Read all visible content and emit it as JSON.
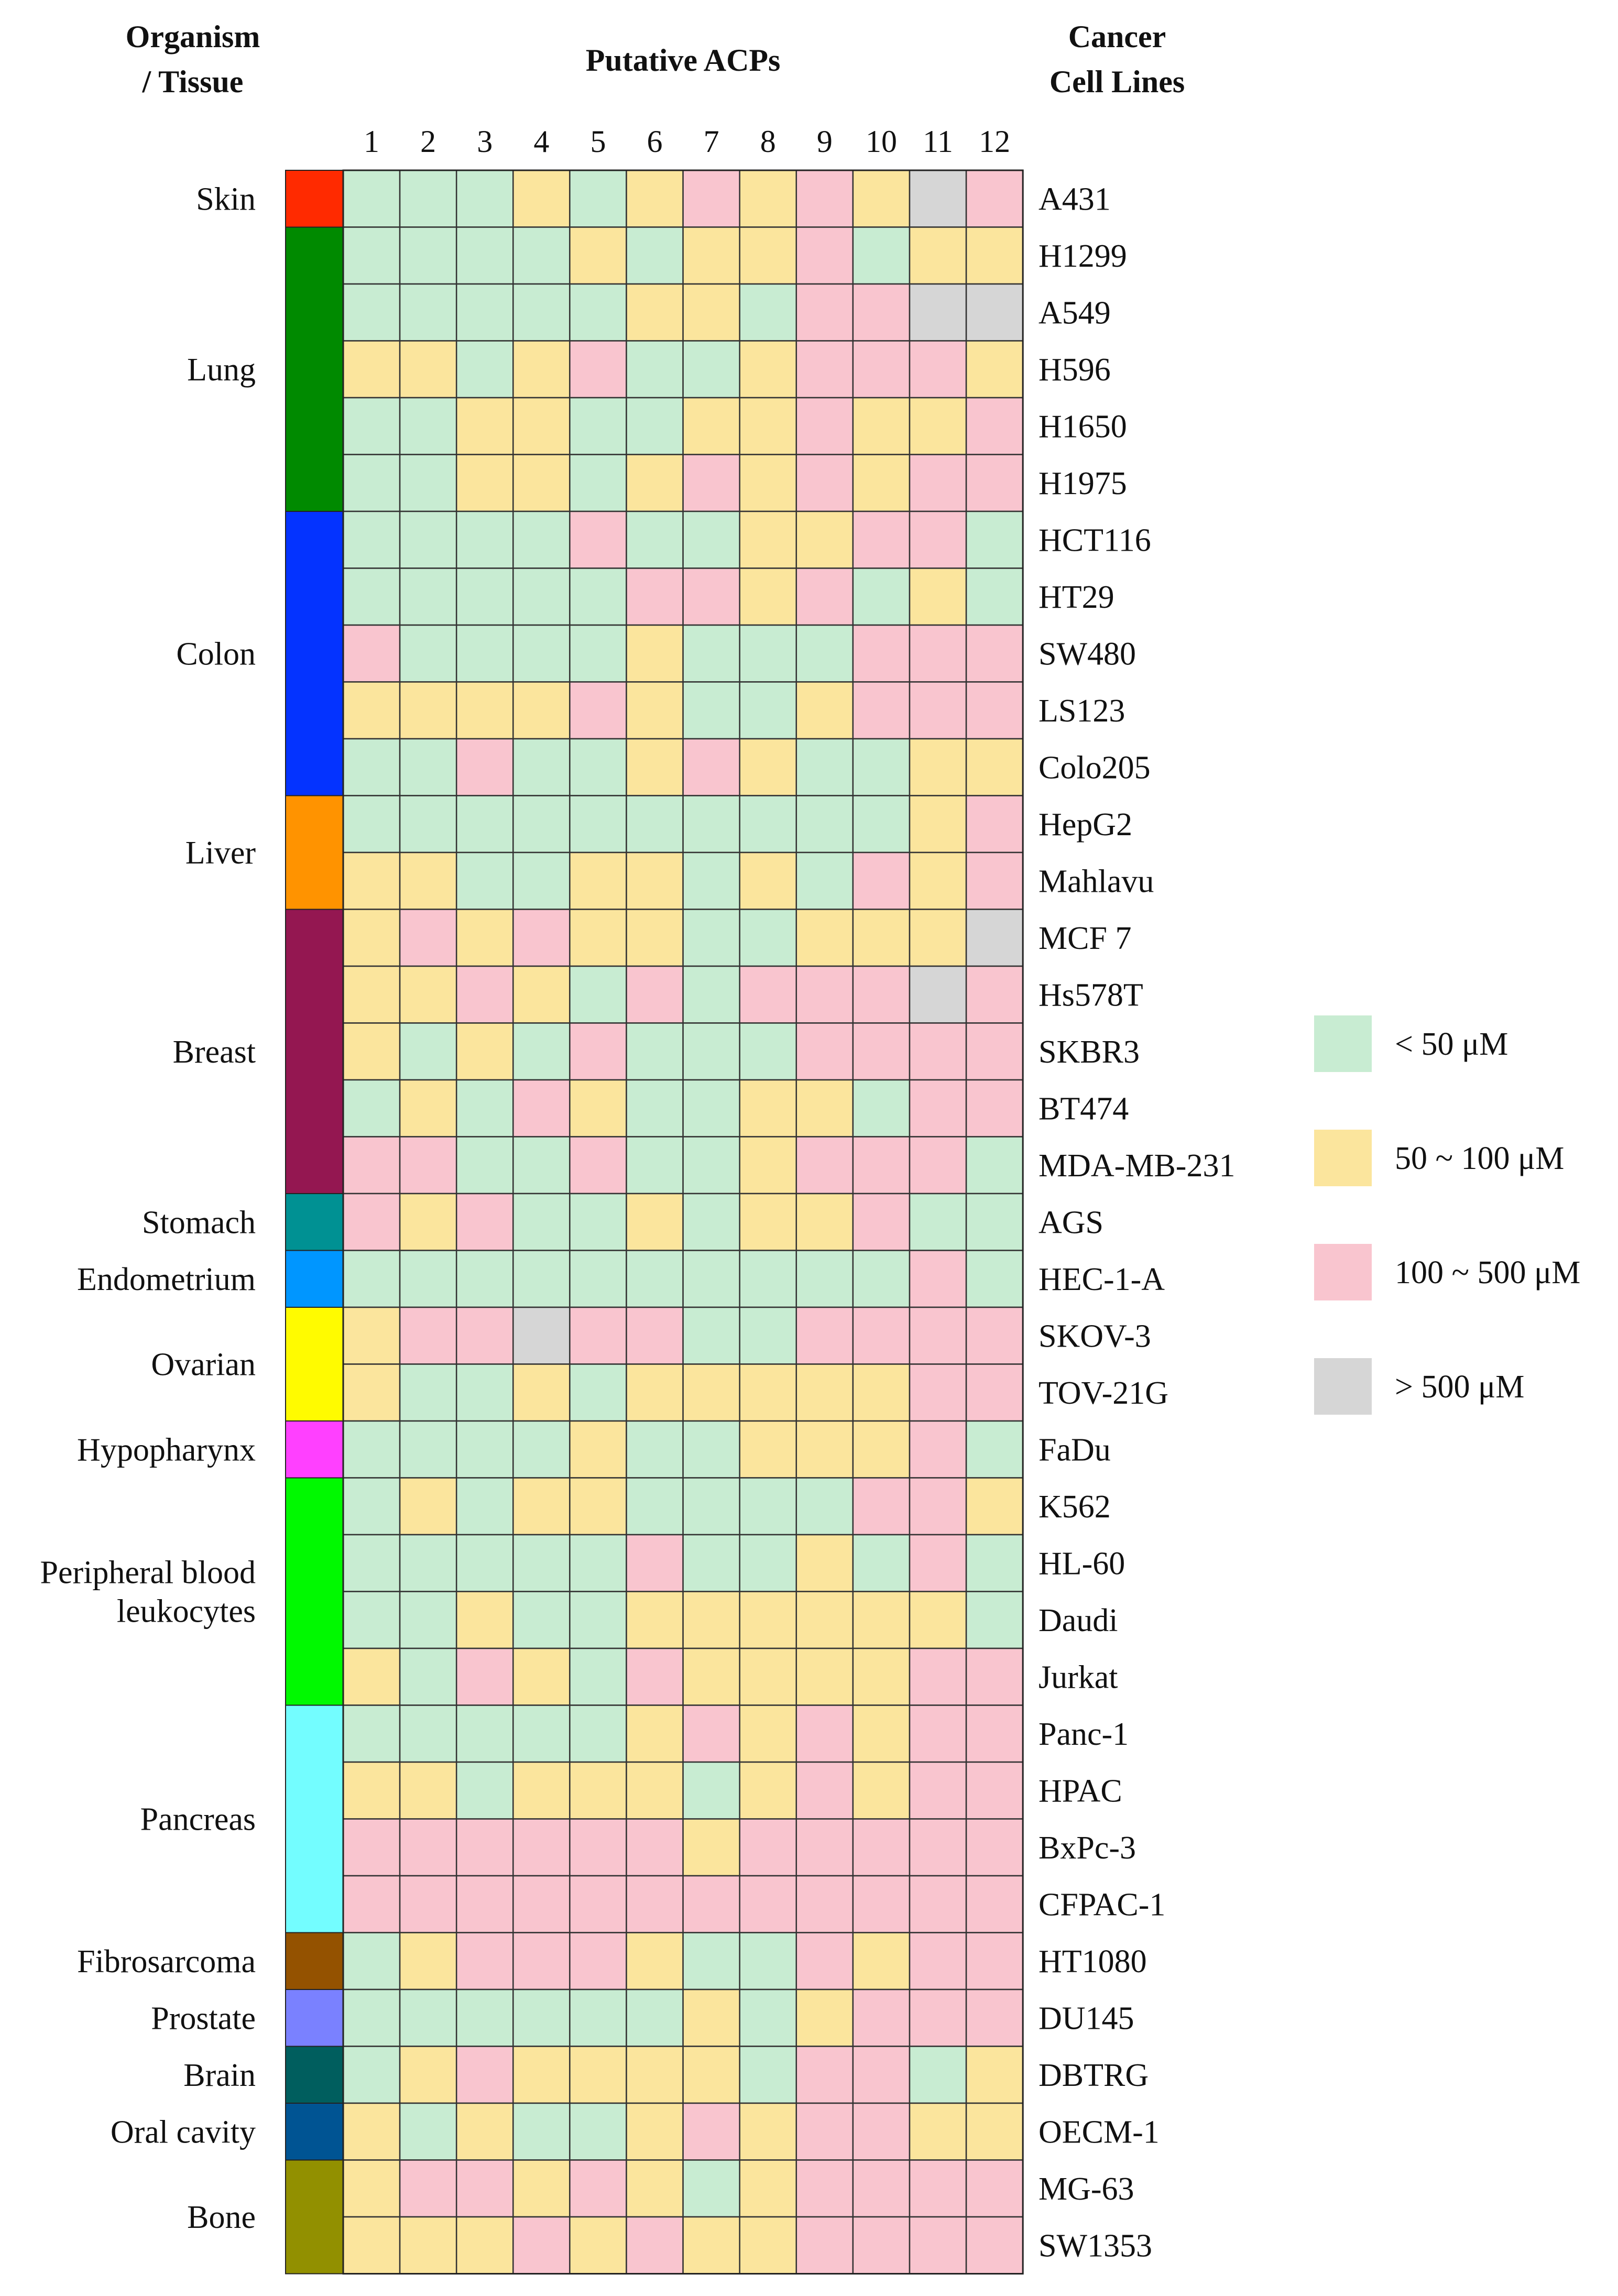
{
  "chart_data": {
    "type": "heatmap",
    "title": "Putative ACPs",
    "left_header": [
      "Organism",
      "/ Tissue"
    ],
    "right_header": [
      "Cancer",
      "Cell Lines"
    ],
    "columns": [
      "1",
      "2",
      "3",
      "4",
      "5",
      "6",
      "7",
      "8",
      "9",
      "10",
      "11",
      "12"
    ],
    "categories": {
      "g": {
        "label": "< 50 μM",
        "color": "#c8ecd2"
      },
      "y": {
        "label": "50 ~ 100 μM",
        "color": "#fbe59d"
      },
      "p": {
        "label": "100 ~ 500 μM",
        "color": "#f9c5cf"
      },
      "x": {
        "label": "> 500 μM",
        "color": "#d6d6d6"
      }
    },
    "legend_order": [
      "g",
      "y",
      "p",
      "x"
    ],
    "tissues": [
      {
        "name": [
          "Skin"
        ],
        "color": "#ff2a00",
        "rows": 1
      },
      {
        "name": [
          "Lung"
        ],
        "color": "#008a00",
        "rows": 5
      },
      {
        "name": [
          "Colon"
        ],
        "color": "#0433ff",
        "rows": 5
      },
      {
        "name": [
          "Liver"
        ],
        "color": "#ff9300",
        "rows": 2
      },
      {
        "name": [
          "Breast"
        ],
        "color": "#941751",
        "rows": 5
      },
      {
        "name": [
          "Stomach"
        ],
        "color": "#009193",
        "rows": 1
      },
      {
        "name": [
          "Endometrium"
        ],
        "color": "#0096ff",
        "rows": 1
      },
      {
        "name": [
          "Ovarian"
        ],
        "color": "#fffb00",
        "rows": 2
      },
      {
        "name": [
          "Hypopharynx"
        ],
        "color": "#ff40ff",
        "rows": 1
      },
      {
        "name": [
          "Peripheral blood",
          "leukocytes"
        ],
        "color": "#00f900",
        "rows": 4
      },
      {
        "name": [
          "Pancreas"
        ],
        "color": "#73fdff",
        "rows": 4
      },
      {
        "name": [
          "Fibrosarcoma"
        ],
        "color": "#945200",
        "rows": 1
      },
      {
        "name": [
          "Prostate"
        ],
        "color": "#7a81ff",
        "rows": 1
      },
      {
        "name": [
          "Brain"
        ],
        "color": "#005e5e",
        "rows": 1
      },
      {
        "name": [
          "Oral cavity"
        ],
        "color": "#005493",
        "rows": 1
      },
      {
        "name": [
          "Bone"
        ],
        "color": "#929000",
        "rows": 2
      }
    ],
    "cell_lines": [
      "A431",
      "H1299",
      "A549",
      "H596",
      "H1650",
      "H1975",
      "HCT116",
      "HT29",
      "SW480",
      "LS123",
      "Colo205",
      "HepG2",
      "Mahlavu",
      "MCF 7",
      "Hs578T",
      "SKBR3",
      "BT474",
      "MDA-MB-231",
      "AGS",
      "HEC-1-A",
      "SKOV-3",
      "TOV-21G",
      "FaDu",
      "K562",
      "HL-60",
      "Daudi",
      "Jurkat",
      "Panc-1",
      "HPAC",
      "BxPc-3",
      "CFPAC-1",
      "HT1080",
      "DU145",
      "DBTRG",
      "OECM-1",
      "MG-63",
      "SW1353"
    ],
    "values": [
      [
        "g",
        "g",
        "g",
        "y",
        "g",
        "y",
        "p",
        "y",
        "p",
        "y",
        "x",
        "p"
      ],
      [
        "g",
        "g",
        "g",
        "g",
        "y",
        "g",
        "y",
        "y",
        "p",
        "g",
        "y",
        "y"
      ],
      [
        "g",
        "g",
        "g",
        "g",
        "g",
        "y",
        "y",
        "g",
        "p",
        "p",
        "x",
        "x"
      ],
      [
        "y",
        "y",
        "g",
        "y",
        "p",
        "g",
        "g",
        "y",
        "p",
        "p",
        "p",
        "y"
      ],
      [
        "g",
        "g",
        "y",
        "y",
        "g",
        "g",
        "y",
        "y",
        "p",
        "y",
        "y",
        "p"
      ],
      [
        "g",
        "g",
        "y",
        "y",
        "g",
        "y",
        "p",
        "y",
        "p",
        "y",
        "p",
        "p"
      ],
      [
        "g",
        "g",
        "g",
        "g",
        "p",
        "g",
        "g",
        "y",
        "y",
        "p",
        "p",
        "g"
      ],
      [
        "g",
        "g",
        "g",
        "g",
        "g",
        "p",
        "p",
        "y",
        "p",
        "g",
        "y",
        "g"
      ],
      [
        "p",
        "g",
        "g",
        "g",
        "g",
        "y",
        "g",
        "g",
        "g",
        "p",
        "p",
        "p"
      ],
      [
        "y",
        "y",
        "y",
        "y",
        "p",
        "y",
        "g",
        "g",
        "y",
        "p",
        "p",
        "p"
      ],
      [
        "g",
        "g",
        "p",
        "g",
        "g",
        "y",
        "p",
        "y",
        "g",
        "g",
        "y",
        "y"
      ],
      [
        "g",
        "g",
        "g",
        "g",
        "g",
        "g",
        "g",
        "g",
        "g",
        "g",
        "y",
        "p"
      ],
      [
        "y",
        "y",
        "g",
        "g",
        "y",
        "y",
        "g",
        "y",
        "g",
        "p",
        "y",
        "p"
      ],
      [
        "y",
        "p",
        "y",
        "p",
        "y",
        "y",
        "g",
        "g",
        "y",
        "y",
        "y",
        "x"
      ],
      [
        "y",
        "y",
        "p",
        "y",
        "g",
        "p",
        "g",
        "p",
        "p",
        "p",
        "x",
        "p"
      ],
      [
        "y",
        "g",
        "y",
        "g",
        "p",
        "g",
        "g",
        "g",
        "p",
        "p",
        "p",
        "p"
      ],
      [
        "g",
        "y",
        "g",
        "p",
        "y",
        "g",
        "g",
        "y",
        "y",
        "g",
        "p",
        "p"
      ],
      [
        "p",
        "p",
        "g",
        "g",
        "p",
        "g",
        "g",
        "y",
        "p",
        "p",
        "p",
        "g"
      ],
      [
        "p",
        "y",
        "p",
        "g",
        "g",
        "y",
        "g",
        "y",
        "y",
        "p",
        "g",
        "g"
      ],
      [
        "g",
        "g",
        "g",
        "g",
        "g",
        "g",
        "g",
        "g",
        "g",
        "g",
        "p",
        "g"
      ],
      [
        "y",
        "p",
        "p",
        "x",
        "p",
        "p",
        "g",
        "g",
        "p",
        "p",
        "p",
        "p"
      ],
      [
        "y",
        "g",
        "g",
        "y",
        "g",
        "y",
        "y",
        "y",
        "y",
        "y",
        "p",
        "p"
      ],
      [
        "g",
        "g",
        "g",
        "g",
        "y",
        "g",
        "g",
        "y",
        "y",
        "y",
        "p",
        "g"
      ],
      [
        "g",
        "y",
        "g",
        "y",
        "y",
        "g",
        "g",
        "g",
        "g",
        "p",
        "p",
        "y"
      ],
      [
        "g",
        "g",
        "g",
        "g",
        "g",
        "p",
        "g",
        "g",
        "y",
        "g",
        "p",
        "g"
      ],
      [
        "g",
        "g",
        "y",
        "g",
        "g",
        "y",
        "y",
        "y",
        "y",
        "y",
        "y",
        "g"
      ],
      [
        "y",
        "g",
        "p",
        "y",
        "g",
        "p",
        "y",
        "y",
        "y",
        "y",
        "p",
        "p"
      ],
      [
        "g",
        "g",
        "g",
        "g",
        "g",
        "y",
        "p",
        "y",
        "p",
        "y",
        "p",
        "p"
      ],
      [
        "y",
        "y",
        "g",
        "y",
        "y",
        "y",
        "g",
        "y",
        "p",
        "y",
        "p",
        "p"
      ],
      [
        "p",
        "p",
        "p",
        "p",
        "p",
        "p",
        "y",
        "p",
        "p",
        "p",
        "p",
        "p"
      ],
      [
        "p",
        "p",
        "p",
        "p",
        "p",
        "p",
        "p",
        "p",
        "p",
        "p",
        "p",
        "p"
      ],
      [
        "g",
        "y",
        "p",
        "p",
        "p",
        "y",
        "g",
        "g",
        "p",
        "y",
        "p",
        "p"
      ],
      [
        "g",
        "g",
        "g",
        "g",
        "g",
        "g",
        "y",
        "g",
        "y",
        "p",
        "p",
        "p"
      ],
      [
        "g",
        "y",
        "p",
        "y",
        "y",
        "y",
        "y",
        "g",
        "p",
        "p",
        "g",
        "y"
      ],
      [
        "y",
        "g",
        "y",
        "g",
        "g",
        "y",
        "p",
        "y",
        "p",
        "p",
        "y",
        "y"
      ],
      [
        "y",
        "p",
        "p",
        "y",
        "p",
        "y",
        "g",
        "y",
        "p",
        "p",
        "p",
        "p"
      ],
      [
        "y",
        "y",
        "y",
        "p",
        "y",
        "p",
        "y",
        "y",
        "p",
        "p",
        "p",
        "p"
      ]
    ]
  }
}
